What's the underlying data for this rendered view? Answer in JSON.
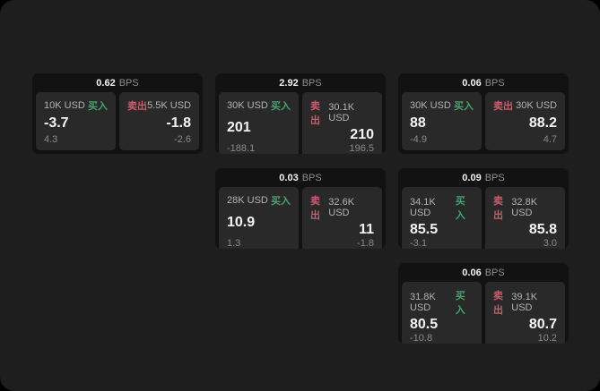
{
  "labels": {
    "bps": "BPS",
    "buy": "买入",
    "sell": "卖出"
  },
  "colors": {
    "background": "#000000",
    "surface": "#1e1e1e",
    "card": "#121212",
    "pane": "#292929",
    "buy": "#3fa66c",
    "sell": "#c95c6c"
  },
  "cards": [
    {
      "bps": "0.62",
      "buy": {
        "amount": "10K USD",
        "price": "-3.7",
        "delta": "4.3"
      },
      "sell": {
        "amount": "5.5K USD",
        "price": "-1.8",
        "delta": "-2.6"
      }
    },
    {
      "bps": "2.92",
      "buy": {
        "amount": "30K USD",
        "price": "201",
        "delta": "-188.1"
      },
      "sell": {
        "amount": "30.1K USD",
        "price": "210",
        "delta": "196.5"
      }
    },
    {
      "bps": "0.06",
      "buy": {
        "amount": "30K USD",
        "price": "88",
        "delta": "-4.9"
      },
      "sell": {
        "amount": "30K USD",
        "price": "88.2",
        "delta": "4.7"
      }
    },
    {
      "bps": "0.03",
      "buy": {
        "amount": "28K USD",
        "price": "10.9",
        "delta": "1.3"
      },
      "sell": {
        "amount": "32.6K USD",
        "price": "11",
        "delta": "-1.8"
      }
    },
    {
      "bps": "0.09",
      "buy": {
        "amount": "34.1K USD",
        "price": "85.5",
        "delta": "-3.1"
      },
      "sell": {
        "amount": "32.8K USD",
        "price": "85.8",
        "delta": "3.0"
      }
    },
    {
      "bps": "0.06",
      "buy": {
        "amount": "31.8K USD",
        "price": "80.5",
        "delta": "-10.8"
      },
      "sell": {
        "amount": "39.1K USD",
        "price": "80.7",
        "delta": "10.2"
      }
    }
  ]
}
